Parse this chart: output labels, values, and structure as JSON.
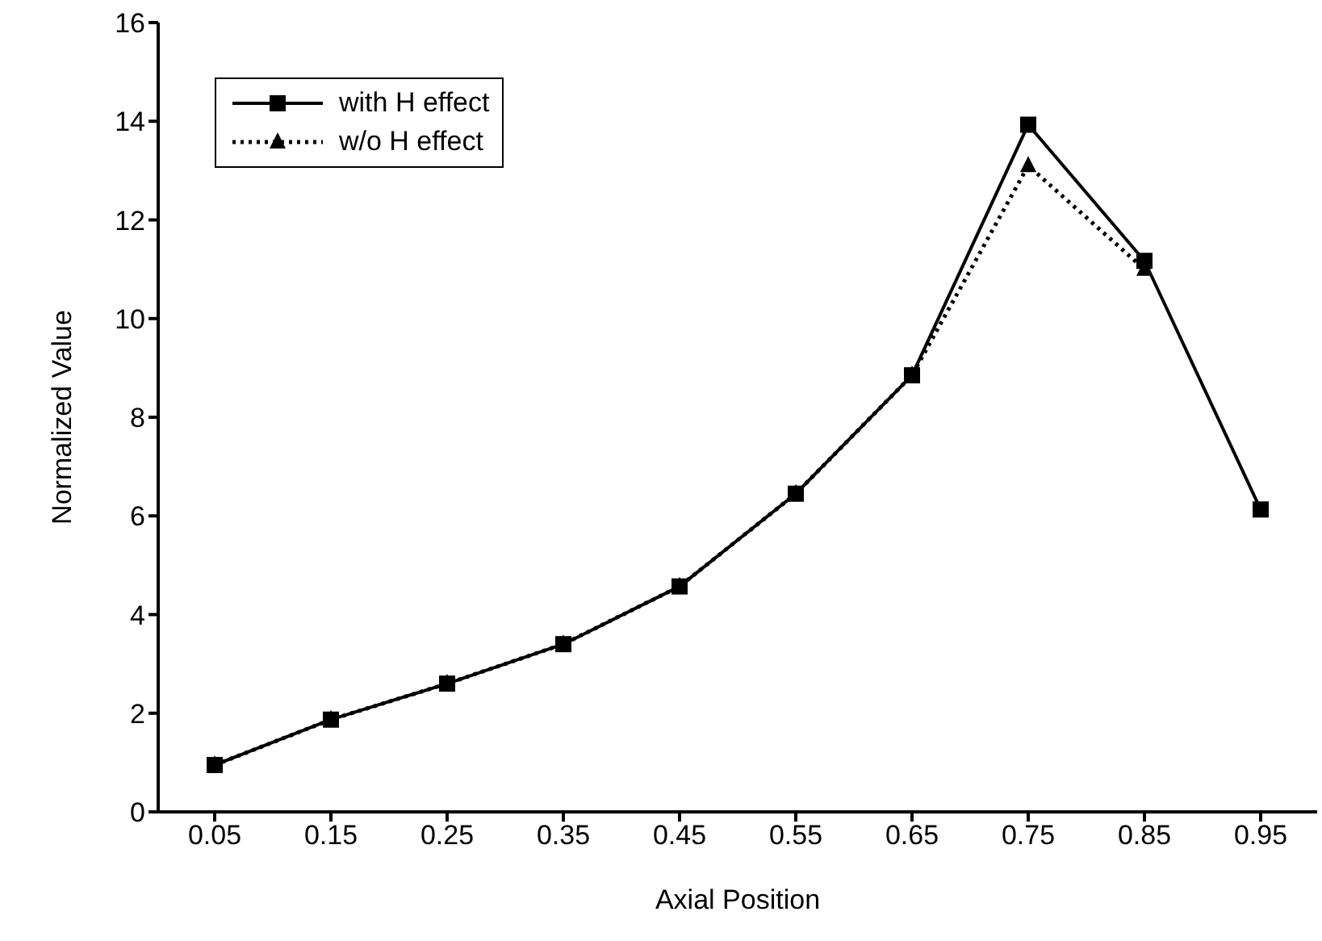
{
  "chart_data": {
    "type": "line",
    "xlabel": "Axial Position",
    "ylabel": "Normalized Value",
    "categories": [
      "0.05",
      "0.15",
      "0.25",
      "0.35",
      "0.45",
      "0.55",
      "0.65",
      "0.75",
      "0.85",
      "0.95"
    ],
    "series": [
      {
        "name": "with H effect",
        "color": "#000000",
        "marker": "square",
        "line_style": "solid",
        "values": [
          0.95,
          1.87,
          2.6,
          3.4,
          4.57,
          6.45,
          8.85,
          13.93,
          11.17,
          6.13
        ]
      },
      {
        "name": "w/o H effect",
        "color": "#000000",
        "marker": "triangle",
        "line_style": "dotted",
        "values": [
          0.95,
          1.87,
          2.6,
          3.4,
          4.57,
          6.45,
          8.85,
          13.1,
          11.0,
          null
        ]
      }
    ],
    "ylim": [
      0,
      16
    ],
    "yticks": [
      0,
      2,
      4,
      6,
      8,
      10,
      12,
      14,
      16
    ],
    "grid": false,
    "legend": "top left"
  }
}
